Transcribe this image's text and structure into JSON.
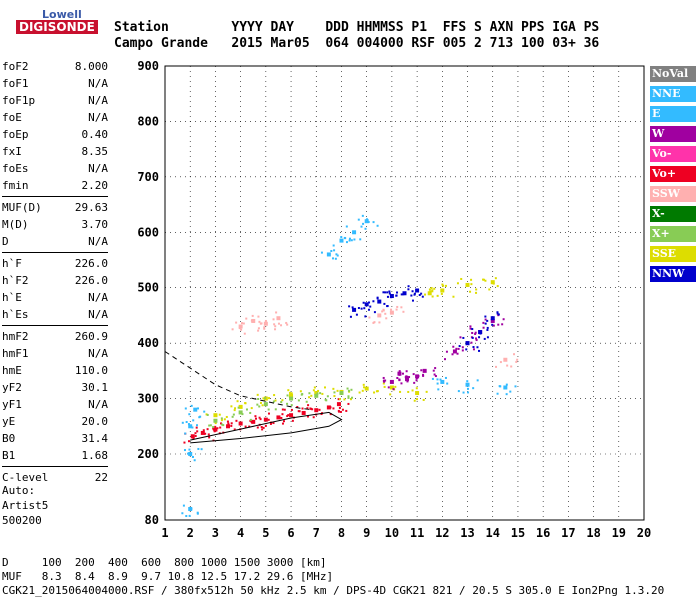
{
  "logo": {
    "line1": "Lowell",
    "line2": "DIGISONDE"
  },
  "header": {
    "line1": "Station        YYYY DAY    DDD HHMMSS P1  FFS S AXN PPS IGA PS",
    "line2": "Campo Grande   2015 Mar05  064 004000 RSF 005 2 713 100 03+ 36"
  },
  "params": [
    {
      "k": "foF2",
      "v": "8.000"
    },
    {
      "k": "foF1",
      "v": "N/A"
    },
    {
      "k": "foF1p",
      "v": "N/A"
    },
    {
      "k": "foE",
      "v": "N/A"
    },
    {
      "k": "foEp",
      "v": "0.40"
    },
    {
      "k": "fxI",
      "v": "8.35"
    },
    {
      "k": "foEs",
      "v": "N/A"
    },
    {
      "k": "fmin",
      "v": "2.20"
    },
    {
      "sep": true
    },
    {
      "k": "MUF(D)",
      "v": "29.63"
    },
    {
      "k": "M(D)",
      "v": "3.70"
    },
    {
      "k": "D",
      "v": "N/A"
    },
    {
      "sep": true
    },
    {
      "k": "h`F",
      "v": "226.0"
    },
    {
      "k": "h`F2",
      "v": "226.0"
    },
    {
      "k": "h`E",
      "v": "N/A"
    },
    {
      "k": "h`Es",
      "v": "N/A"
    },
    {
      "sep": true
    },
    {
      "k": "hmF2",
      "v": "260.9"
    },
    {
      "k": "hmF1",
      "v": "N/A"
    },
    {
      "k": "hmE",
      "v": "110.0"
    },
    {
      "k": "yF2",
      "v": "30.1"
    },
    {
      "k": "yF1",
      "v": "N/A"
    },
    {
      "k": "yE",
      "v": "20.0"
    },
    {
      "k": "B0",
      "v": "31.4"
    },
    {
      "k": "B1",
      "v": "1.68"
    },
    {
      "sep": true
    },
    {
      "k": "C-level",
      "v": "22"
    }
  ],
  "auto": [
    "Auto:",
    "Artist5",
    "500200"
  ],
  "footer": {
    "line1": "D     100  200  400  600  800 1000 1500 3000 [km]",
    "line2": "MUF   8.3  8.4  8.9  9.7 10.8 12.5 17.2 29.6 [MHz]",
    "line3": "CGK21_2015064004000.RSF / 380fx512h 50 kHz 2.5 km / DPS-4D CGK21 821 / 20.5 S 305.0 E Ion2Png 1.3.20"
  },
  "legend": [
    {
      "label": "NoVal",
      "color": "#808080"
    },
    {
      "label": "NNE",
      "color": "#33bbff"
    },
    {
      "label": "E",
      "color": "#33bbff"
    },
    {
      "label": "W",
      "color": "#a000a0"
    },
    {
      "label": "Vo-",
      "color": "#ff33aa"
    },
    {
      "label": "Vo+",
      "color": "#ee0022"
    },
    {
      "label": "SSW",
      "color": "#ffb0b0"
    },
    {
      "label": "X-",
      "color": "#007a00"
    },
    {
      "label": "X+",
      "color": "#88cc55"
    },
    {
      "label": "SSE",
      "color": "#dddd00"
    },
    {
      "label": "NNW",
      "color": "#0000cc"
    }
  ],
  "chart_data": {
    "type": "scatter",
    "xlim": [
      1,
      20
    ],
    "ylim": [
      80,
      900
    ],
    "xticks": [
      "1",
      "2",
      "3",
      "4",
      "5",
      "6",
      "7",
      "8",
      "9",
      "10",
      "11",
      "12",
      "13",
      "14",
      "15",
      "16",
      "17",
      "18",
      "19",
      "20"
    ],
    "yticks": [
      "80",
      "200",
      "300",
      "400",
      "500",
      "600",
      "700",
      "800",
      "900"
    ],
    "grid": true,
    "series": [
      {
        "name": "Vo+",
        "color": "#ee0022",
        "x": [
          2.1,
          2.5,
          3.0,
          3.5,
          4.0,
          4.5,
          5.0,
          5.5,
          6.0,
          6.5,
          7.0,
          7.5,
          7.9
        ],
        "y": [
          232,
          238,
          244,
          250,
          255,
          258,
          262,
          266,
          270,
          274,
          279,
          284,
          290
        ]
      },
      {
        "name": "SSE",
        "color": "#dddd00",
        "x": [
          3.0,
          4.0,
          5.0,
          6.0,
          7.0,
          8.0,
          9.0,
          10.0,
          11.0,
          11.5,
          12.0,
          13.0,
          14.0
        ],
        "y": [
          270,
          285,
          300,
          305,
          310,
          312,
          318,
          320,
          310,
          490,
          495,
          505,
          510
        ]
      },
      {
        "name": "W",
        "color": "#a000a0",
        "x": [
          10.0,
          10.3,
          10.6,
          11.0,
          11.3,
          12.5,
          13.0,
          13.5,
          14.0
        ],
        "y": [
          330,
          345,
          335,
          340,
          350,
          385,
          400,
          420,
          440
        ]
      },
      {
        "name": "NNW",
        "color": "#0000cc",
        "x": [
          8.5,
          9.0,
          9.5,
          10.0,
          10.5,
          11.0,
          13.0,
          13.5,
          14.0
        ],
        "y": [
          460,
          470,
          475,
          485,
          490,
          495,
          400,
          420,
          445
        ]
      },
      {
        "name": "E",
        "color": "#33bbff",
        "x": [
          2.0,
          2.0,
          2.0,
          2.2,
          7.5,
          8.0,
          8.5,
          9.0,
          12.0,
          13.0,
          14.5
        ],
        "y": [
          250,
          200,
          100,
          280,
          560,
          585,
          600,
          620,
          330,
          325,
          320
        ]
      },
      {
        "name": "SSW",
        "color": "#ffb0b0",
        "x": [
          4.0,
          4.5,
          5.0,
          5.5,
          9.5,
          10.0,
          14.5
        ],
        "y": [
          430,
          440,
          435,
          445,
          450,
          455,
          370
        ]
      },
      {
        "name": "X+",
        "color": "#88cc55",
        "x": [
          3.0,
          4.0,
          5.0,
          6.0,
          7.0,
          8.0
        ],
        "y": [
          260,
          275,
          290,
          300,
          305,
          310
        ]
      }
    ],
    "model_curves": [
      {
        "x": [
          1.0,
          2.0,
          3.0,
          4.0,
          5.0,
          6.0,
          6.8
        ],
        "y": [
          385,
          355,
          325,
          305,
          295,
          285,
          280
        ]
      },
      {
        "x": [
          2.0,
          4.0,
          6.0,
          7.5,
          8.0,
          7.5,
          6.0,
          4.0,
          2.0
        ],
        "y": [
          220,
          228,
          238,
          250,
          262,
          275,
          265,
          245,
          225
        ]
      }
    ]
  }
}
